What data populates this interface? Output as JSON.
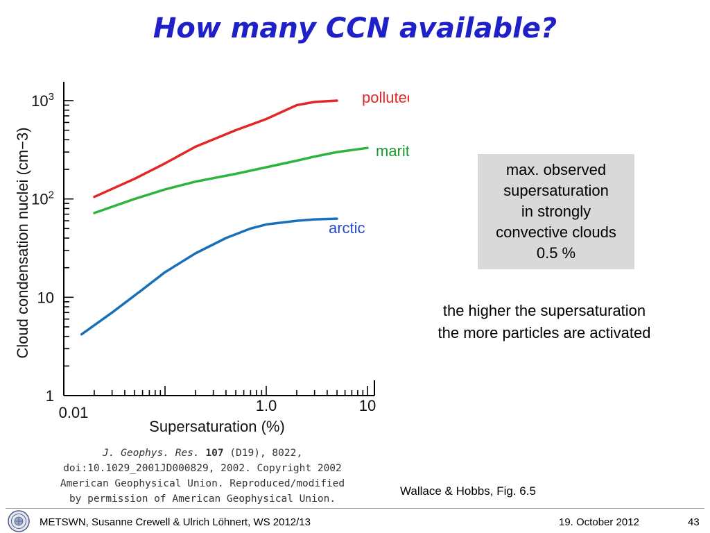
{
  "slide": {
    "title": "How many CCN available?",
    "sat_box": {
      "line1": "max. observed",
      "line2": "supersaturation",
      "line3": "in strongly",
      "line4": "convective clouds",
      "line5": "0.5 %"
    },
    "note": {
      "line1": "the higher the supersaturation",
      "line2": "the more particles are activated"
    },
    "credit": {
      "citation_journal": "J. Geophys. Res.",
      "citation_volume": "107",
      "citation_rest": "(D19), 8022,",
      "line2": "doi:10.1029_2001JD000829, 2002. Copyright 2002",
      "line3": "American Geophysical Union. Reproduced/modified",
      "line4": "by permission of American Geophysical Union."
    },
    "source": "Wallace & Hobbs, Fig. 6.5",
    "footer": {
      "text": "METSWN, Susanne Crewell & Ulrich Löhnert,  WS 2012/13",
      "date": "19. October 2012",
      "page": "43"
    }
  },
  "chart_data": {
    "type": "line",
    "xlabel": "Supersaturation (%)",
    "ylabel": "Cloud condensation nuclei (cm−3)",
    "x_scale": "log",
    "y_scale": "log",
    "xlim": [
      0.01,
      10
    ],
    "ylim": [
      1,
      1000
    ],
    "x_tick_labels": [
      {
        "value": 0.01,
        "label": "0.01"
      },
      {
        "value": 1,
        "label": "1.0"
      },
      {
        "value": 10,
        "label": "10"
      }
    ],
    "y_tick_labels": [
      {
        "value": 1,
        "label": "1",
        "exp": ""
      },
      {
        "value": 10,
        "label": "10",
        "exp": ""
      },
      {
        "value": 100,
        "label": "10",
        "exp": "2"
      },
      {
        "value": 1000,
        "label": "10",
        "exp": "3"
      }
    ],
    "grid": false,
    "series": [
      {
        "name": "polluted",
        "color": "#e02828",
        "x": [
          0.02,
          0.05,
          0.1,
          0.2,
          0.5,
          1,
          2,
          3,
          5
        ],
        "y": [
          105,
          160,
          230,
          340,
          500,
          650,
          900,
          970,
          1000
        ]
      },
      {
        "name": "maritime",
        "color": "#2db43c",
        "x": [
          0.02,
          0.05,
          0.1,
          0.2,
          0.5,
          1,
          2,
          3,
          5,
          10
        ],
        "y": [
          72,
          100,
          125,
          150,
          180,
          210,
          245,
          270,
          300,
          330
        ]
      },
      {
        "name": "arctic",
        "color": "#1a70b8",
        "x": [
          0.015,
          0.03,
          0.06,
          0.1,
          0.2,
          0.4,
          0.7,
          1,
          2,
          3,
          5
        ],
        "y": [
          4.2,
          7,
          12,
          18,
          28,
          40,
          50,
          55,
          60,
          62,
          63
        ]
      }
    ]
  }
}
